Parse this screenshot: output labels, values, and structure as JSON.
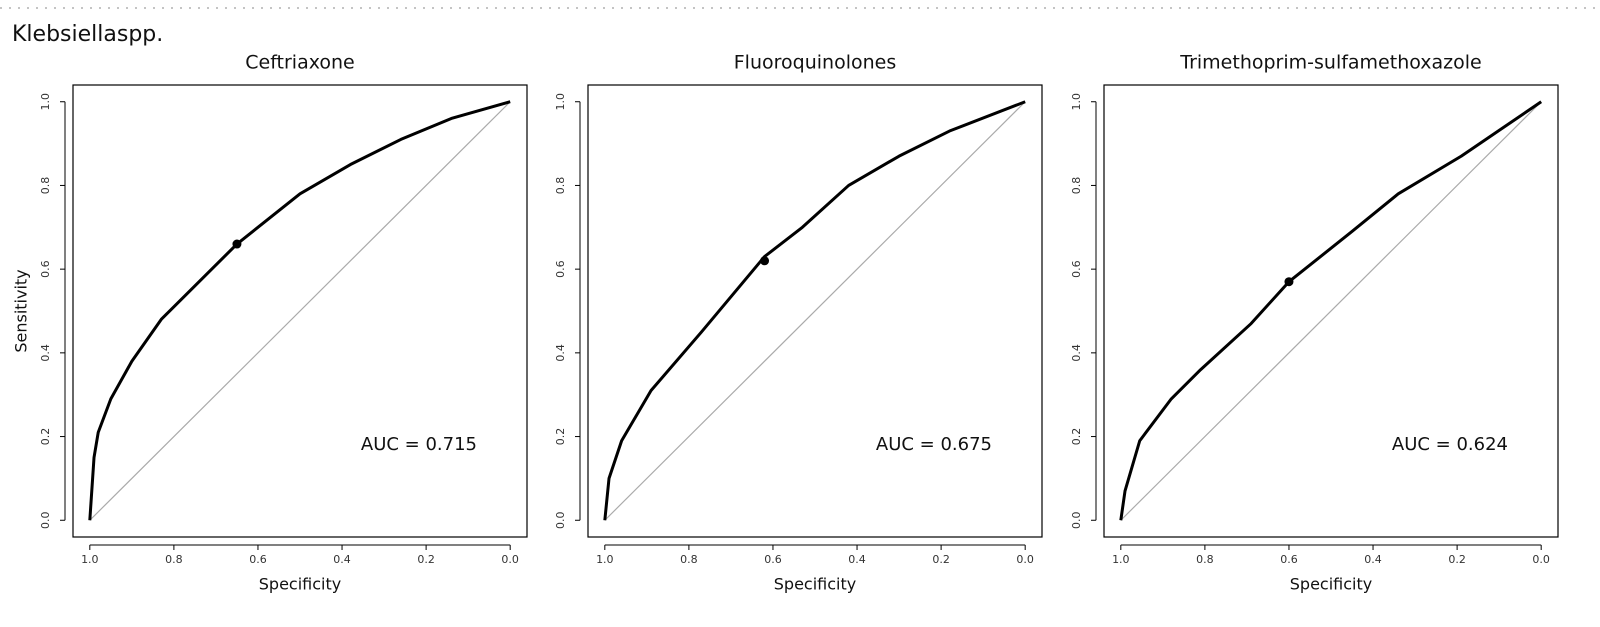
{
  "header": "Klebsiellaspp.",
  "chart_data": [
    {
      "type": "line",
      "title": "Ceftriaxone",
      "xlabel": "Specificity",
      "ylabel": "Sensitivity",
      "annotation": "AUC = 0.715",
      "color": "#000000",
      "x": [
        1.0,
        0.99,
        0.98,
        0.95,
        0.9,
        0.83,
        0.74,
        0.65,
        0.5,
        0.38,
        0.26,
        0.14,
        0.0
      ],
      "values": [
        0,
        0.15,
        0.21,
        0.29,
        0.38,
        0.48,
        0.57,
        0.66,
        0.78,
        0.85,
        0.91,
        0.96,
        1.0
      ],
      "threshold": {
        "x": 0.65,
        "y": 0.66
      },
      "xlim": [
        1.04,
        -0.04
      ],
      "ylim": [
        -0.04,
        1.04
      ],
      "xticks": [
        {
          "value": 1,
          "label": "1.0"
        },
        0.8,
        0.6,
        0.4,
        0.2,
        {
          "value": 0,
          "label": "0.0"
        }
      ],
      "yticks": [
        {
          "value": 0,
          "label": "0.0"
        },
        0.2,
        0.4,
        0.6,
        0.8,
        {
          "value": 1,
          "label": "1.0"
        }
      ]
    },
    {
      "type": "line",
      "title": "Fluoroquinolones",
      "xlabel": "Specificity",
      "annotation": "AUC = 0.675",
      "color": "#000000",
      "x": [
        1.0,
        0.99,
        0.96,
        0.89,
        0.77,
        0.62,
        0.53,
        0.42,
        0.3,
        0.18,
        0.0
      ],
      "values": [
        0,
        0.1,
        0.19,
        0.31,
        0.45,
        0.63,
        0.7,
        0.8,
        0.87,
        0.93,
        1.0
      ],
      "threshold": {
        "x": 0.62,
        "y": 0.62
      },
      "xlim": [
        1.04,
        -0.04
      ],
      "ylim": [
        -0.04,
        1.04
      ],
      "xticks": [
        {
          "value": 1,
          "label": "1.0"
        },
        0.8,
        0.6,
        0.4,
        0.2,
        {
          "value": 0,
          "label": "0.0"
        }
      ],
      "yticks": [
        {
          "value": 0,
          "label": "0.0"
        },
        0.2,
        0.4,
        0.6,
        0.8,
        {
          "value": 1,
          "label": "1.0"
        }
      ]
    },
    {
      "type": "line",
      "title": "Trimethoprim-sulfamethoxazole",
      "xlabel": "Specificity",
      "annotation": "AUC = 0.624",
      "color": "#000000",
      "x": [
        1.0,
        0.99,
        0.955,
        0.88,
        0.81,
        0.69,
        0.6,
        0.45,
        0.34,
        0.19,
        0.0
      ],
      "values": [
        0,
        0.07,
        0.19,
        0.29,
        0.36,
        0.47,
        0.57,
        0.69,
        0.78,
        0.87,
        1.0
      ],
      "threshold": {
        "x": 0.6,
        "y": 0.57
      },
      "xlim": [
        1.04,
        -0.04
      ],
      "ylim": [
        -0.04,
        1.04
      ],
      "xticks": [
        {
          "value": 1,
          "label": "1.0"
        },
        0.8,
        0.6,
        0.4,
        0.2,
        {
          "value": 0,
          "label": "0.0"
        }
      ],
      "yticks": [
        {
          "value": 0,
          "label": "0.0"
        },
        0.2,
        0.4,
        0.6,
        0.8,
        {
          "value": 1,
          "label": "1.0"
        }
      ]
    }
  ]
}
